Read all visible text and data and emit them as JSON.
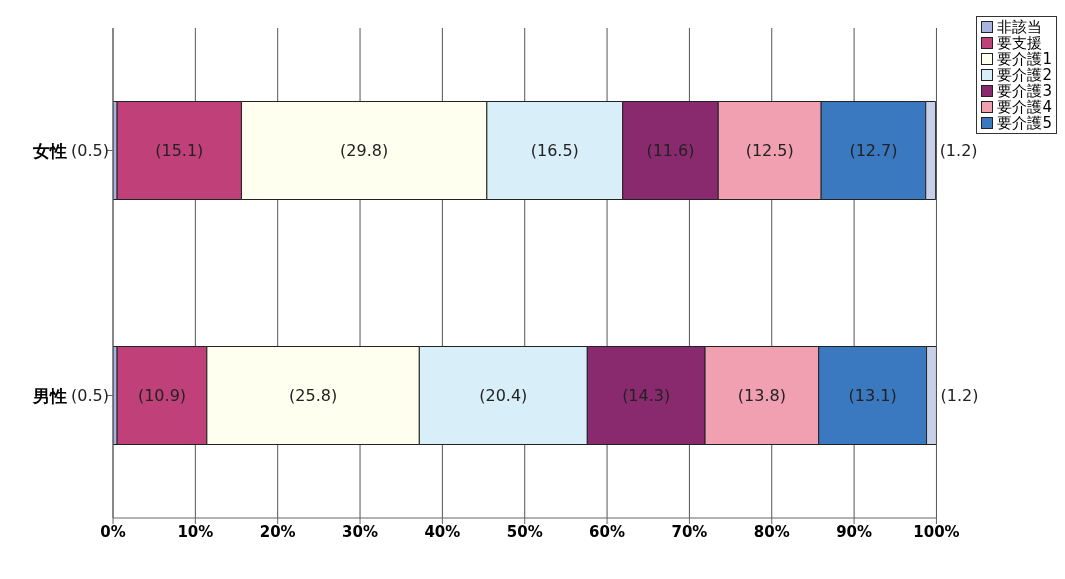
{
  "chart_data": {
    "type": "bar",
    "orientation": "horizontal",
    "stacked": true,
    "categories": [
      "女性",
      "男性"
    ],
    "series": [
      {
        "name": "非該当",
        "color": "#a8b4e0",
        "values": [
          0.5,
          0.5
        ],
        "value_labels": [
          "(0.5)",
          "(0.5)"
        ]
      },
      {
        "name": "要支援",
        "color": "#c0417a",
        "values": [
          15.1,
          10.9
        ],
        "value_labels": [
          "(15.1)",
          "(10.9)"
        ]
      },
      {
        "name": "要介護1",
        "color": "#fffff0",
        "values": [
          29.8,
          25.8
        ],
        "value_labels": [
          "(29.8)",
          "(25.8)"
        ]
      },
      {
        "name": "要介護2",
        "color": "#d8eef8",
        "values": [
          16.5,
          20.4
        ],
        "value_labels": [
          "(16.5)",
          "(20.4)"
        ]
      },
      {
        "name": "要介護3",
        "color": "#8a2a6e",
        "values": [
          11.6,
          14.3
        ],
        "value_labels": [
          "(11.6)",
          "(14.3)"
        ]
      },
      {
        "name": "要介護4",
        "color": "#f0a0b0",
        "values": [
          12.5,
          13.8
        ],
        "value_labels": [
          "(12.5)",
          "(13.8)"
        ]
      },
      {
        "name": "要介護5",
        "color": "#3a78c0",
        "values": [
          12.7,
          13.1
        ],
        "value_labels": [
          "(12.7)",
          "(13.1)"
        ]
      },
      {
        "color": "#c8d0e8",
        "values": [
          1.2,
          1.2
        ],
        "value_labels": [
          "(1.2)",
          "(1.2)"
        ]
      }
    ],
    "xlim": [
      0,
      100
    ],
    "xticks": [
      {
        "value": 0,
        "label": "0%"
      },
      {
        "value": 10,
        "label": "10%"
      },
      {
        "value": 20,
        "label": "20%"
      },
      {
        "value": 30,
        "label": "30%"
      },
      {
        "value": 40,
        "label": "40%"
      },
      {
        "value": 50,
        "label": "50%"
      },
      {
        "value": 60,
        "label": "60%"
      },
      {
        "value": 70,
        "label": "70%"
      },
      {
        "value": 80,
        "label": "80%"
      },
      {
        "value": 90,
        "label": "90%"
      },
      {
        "value": 100,
        "label": "100%"
      }
    ],
    "grid": "x",
    "legend": "top right"
  }
}
